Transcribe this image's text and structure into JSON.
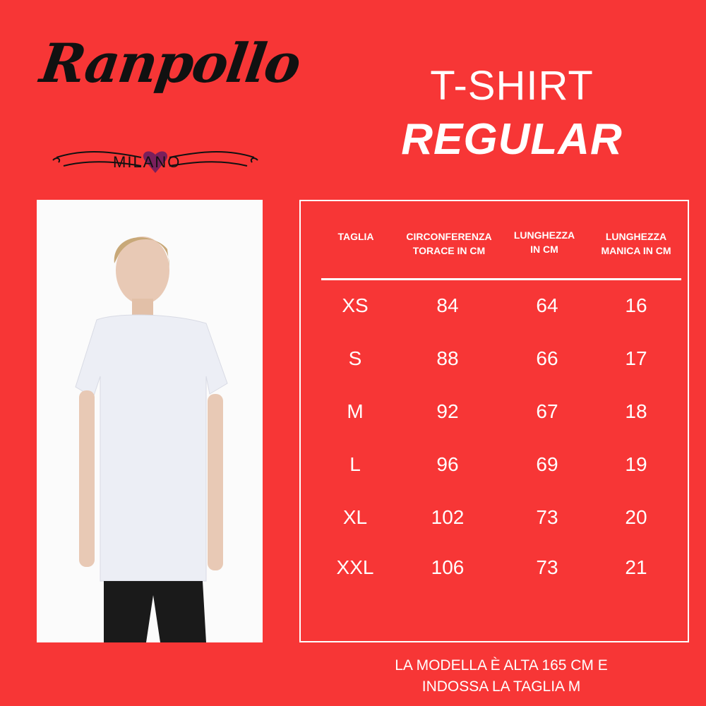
{
  "logo": {
    "brand": "Ranpollo",
    "city": "MILANO",
    "heart_color": "#7a1f5c"
  },
  "title": {
    "line1": "T-SHIRT",
    "line2": "REGULAR"
  },
  "table": {
    "headers": [
      [
        "TAGLIA"
      ],
      [
        "CIRCONFERENZA",
        "TORACE IN CM"
      ],
      [
        "LUNGHEZZA",
        "IN CM"
      ],
      [
        "LUNGHEZZA",
        "MANICA IN CM"
      ]
    ],
    "rows": [
      [
        "XS",
        "84",
        "64",
        "16"
      ],
      [
        "S",
        "88",
        "66",
        "17"
      ],
      [
        "M",
        "92",
        "67",
        "18"
      ],
      [
        "L",
        "96",
        "69",
        "19"
      ],
      [
        "XL",
        "102",
        "73",
        "20"
      ],
      [
        "XXL",
        "106",
        "73",
        "21"
      ]
    ]
  },
  "note": {
    "line1": "LA MODELLA È ALTA 165 CM E",
    "line2": "INDOSSA LA TAGLIA M"
  },
  "colors": {
    "background": "#f73636",
    "text": "#ffffff"
  }
}
